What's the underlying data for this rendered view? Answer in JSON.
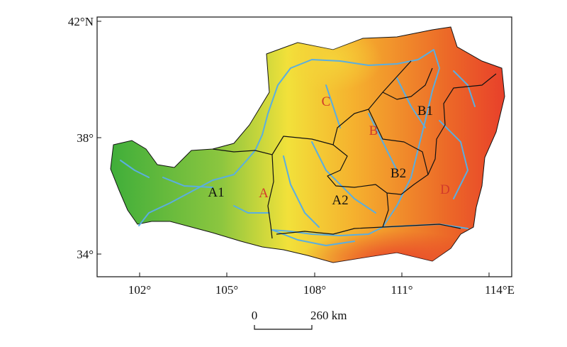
{
  "map": {
    "axes": {
      "lon_ticks": [
        "102°",
        "105°",
        "108°",
        "111°",
        "114°E"
      ],
      "lat_ticks": [
        "42°N",
        "38°",
        "34°"
      ]
    },
    "regions": [
      {
        "id": "A1",
        "label": "A1",
        "color": "#111111"
      },
      {
        "id": "A",
        "label": "A",
        "color": "#d23a2a"
      },
      {
        "id": "A2",
        "label": "A2",
        "color": "#111111"
      },
      {
        "id": "B",
        "label": "B",
        "color": "#d23a2a"
      },
      {
        "id": "B1",
        "label": "B1",
        "color": "#111111"
      },
      {
        "id": "B2",
        "label": "B2",
        "color": "#111111"
      },
      {
        "id": "C",
        "label": "C",
        "color": "#d23a2a"
      },
      {
        "id": "D",
        "label": "D",
        "color": "#d23a2a"
      }
    ],
    "scale_bar": {
      "start": "0",
      "end": "260 km"
    },
    "colors": {
      "river": "#5aaee0",
      "boundary": "#111111",
      "elev_low": "#3fae3a",
      "elev_mid": "#f2e13a",
      "elev_high": "#e8402a"
    }
  }
}
